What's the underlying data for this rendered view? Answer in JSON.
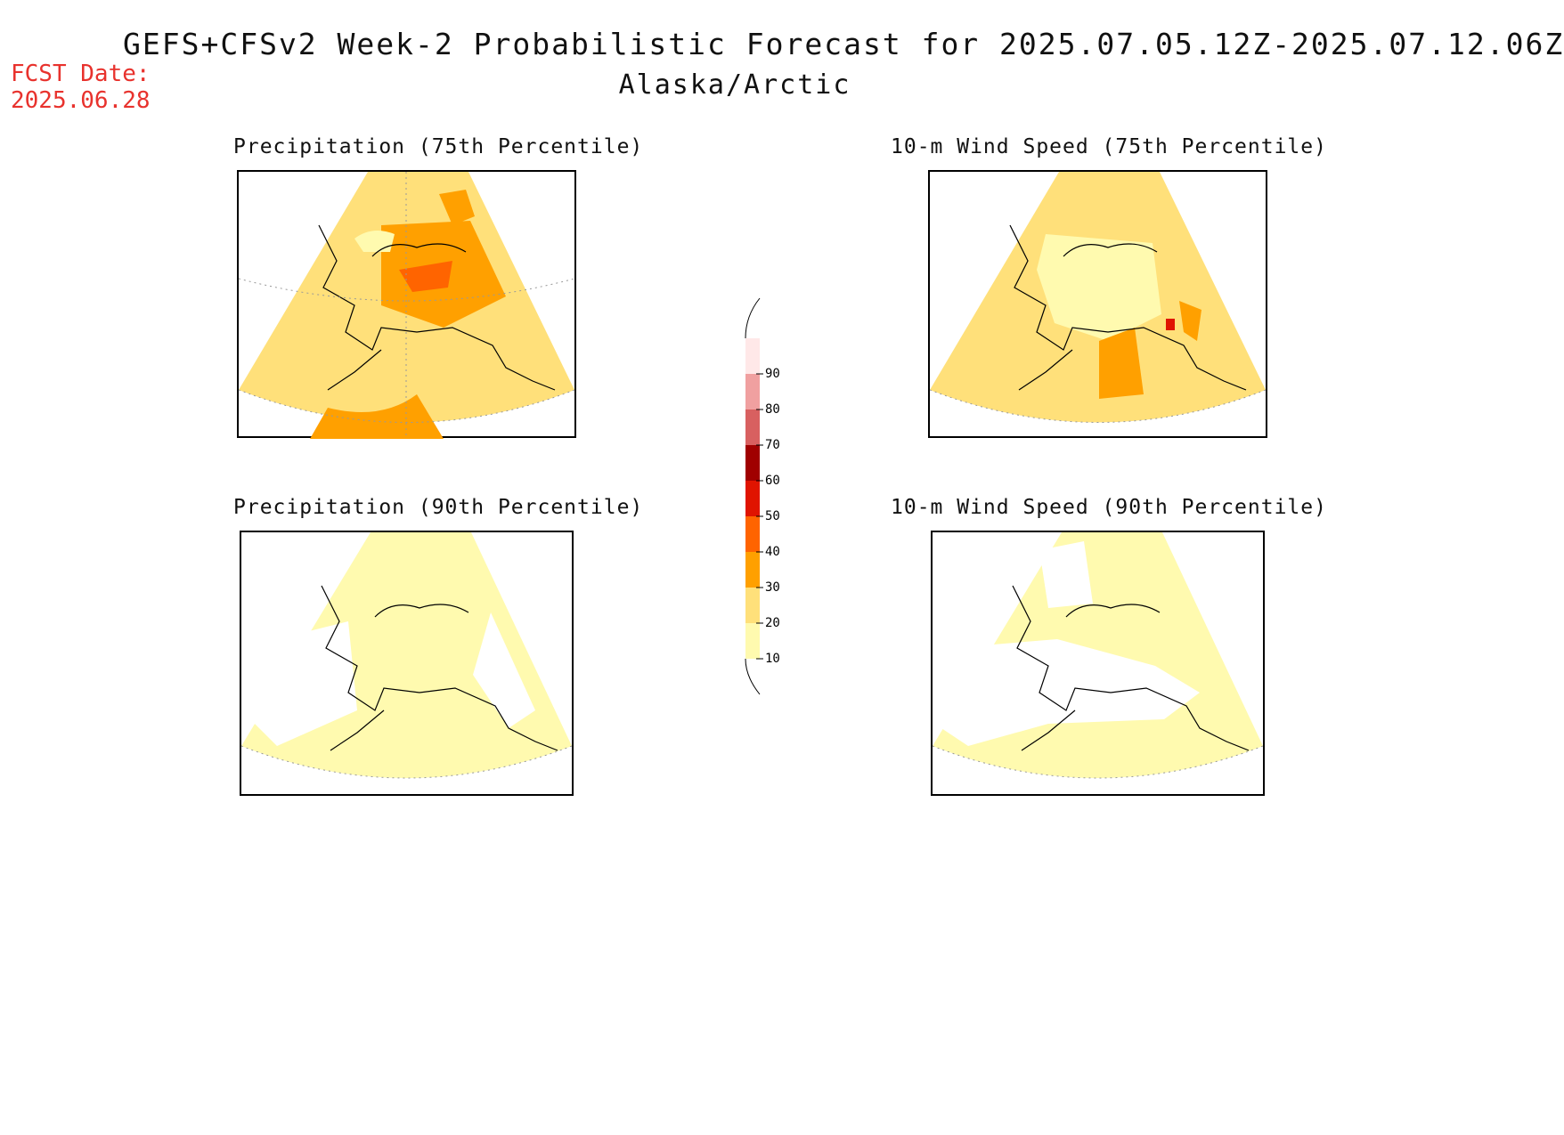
{
  "header": {
    "title": "GEFS+CFSv2 Week-2 Probabilistic Forecast for 2025.07.05.12Z-2025.07.12.06Z",
    "subtitle": "Alaska/Arctic",
    "fcst_label": "FCST Date:",
    "fcst_date": "2025.06.28"
  },
  "panels": [
    {
      "title": "Precipitation (75th Percentile)",
      "dominant_color": "#ffe07a"
    },
    {
      "title": "10-m Wind Speed (75th Percentile)",
      "dominant_color": "#ffe07a"
    },
    {
      "title": "Precipitation (90th Percentile)",
      "dominant_color": "#fffaaf"
    },
    {
      "title": "10-m Wind Speed (90th Percentile)",
      "dominant_color": "#fffaaf"
    }
  ],
  "colorbar": {
    "ticks": [
      "10",
      "20",
      "30",
      "40",
      "50",
      "60",
      "70",
      "80",
      "90"
    ],
    "colors": [
      "#fffaaf",
      "#ffe07a",
      "#ffa000",
      "#ff6400",
      "#e01400",
      "#a00000",
      "#d86060",
      "#f0a0a0",
      "#ffe8e8"
    ]
  }
}
